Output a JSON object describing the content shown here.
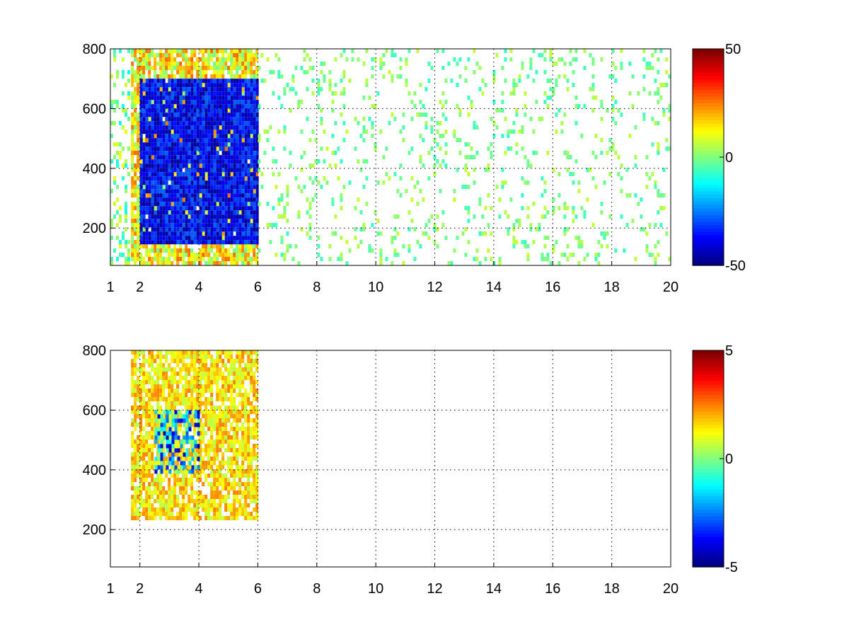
{
  "chart_data": [
    {
      "type": "heatmap",
      "title": "",
      "xlabel": "",
      "ylabel": "",
      "xlim": [
        1,
        20
      ],
      "ylim": [
        75,
        800
      ],
      "x_ticks": [
        1,
        2,
        4,
        6,
        8,
        10,
        12,
        14,
        16,
        18,
        20
      ],
      "y_ticks": [
        200,
        400,
        600,
        800
      ],
      "grid": true,
      "colormap": "jet",
      "colorbar": {
        "min": -50,
        "max": 50,
        "ticks": [
          -50,
          0,
          50
        ]
      },
      "series": [
        {
          "x_start": 1.0,
          "x_end": 1.7,
          "y_start": 75,
          "y_end": 800,
          "mean": 0,
          "spread": 0.25,
          "density": 0.3
        },
        {
          "x_start": 1.7,
          "x_end": 6.0,
          "y_start": 75,
          "y_end": 800,
          "mean": 0.25,
          "spread": 0.3,
          "density": 0.85
        },
        {
          "x_start": 2.0,
          "x_end": 6.0,
          "y_start": 150,
          "y_end": 700,
          "mean": -0.75,
          "spread": 0.2,
          "density": 0.95
        },
        {
          "x_start": 6.0,
          "x_end": 20.0,
          "y_start": 75,
          "y_end": 800,
          "mean": 0,
          "spread": 0.15,
          "density": 0.12
        }
      ]
    },
    {
      "type": "heatmap",
      "title": "",
      "xlabel": "",
      "ylabel": "",
      "xlim": [
        1,
        20
      ],
      "ylim": [
        75,
        800
      ],
      "x_ticks": [
        1,
        2,
        4,
        6,
        8,
        10,
        12,
        14,
        16,
        18,
        20
      ],
      "y_ticks": [
        200,
        400,
        600,
        800
      ],
      "grid": true,
      "colormap": "jet",
      "colorbar": {
        "min": -5,
        "max": 5,
        "ticks": [
          -5,
          0,
          5
        ]
      },
      "series": [
        {
          "x_start": 1.7,
          "x_end": 6.0,
          "y_start": 230,
          "y_end": 800,
          "mean": 0.3,
          "spread": 0.2,
          "density": 0.8
        },
        {
          "x_start": 2.5,
          "x_end": 4.0,
          "y_start": 380,
          "y_end": 600,
          "mean": -0.4,
          "spread": 0.5,
          "density": 0.6
        }
      ]
    }
  ]
}
